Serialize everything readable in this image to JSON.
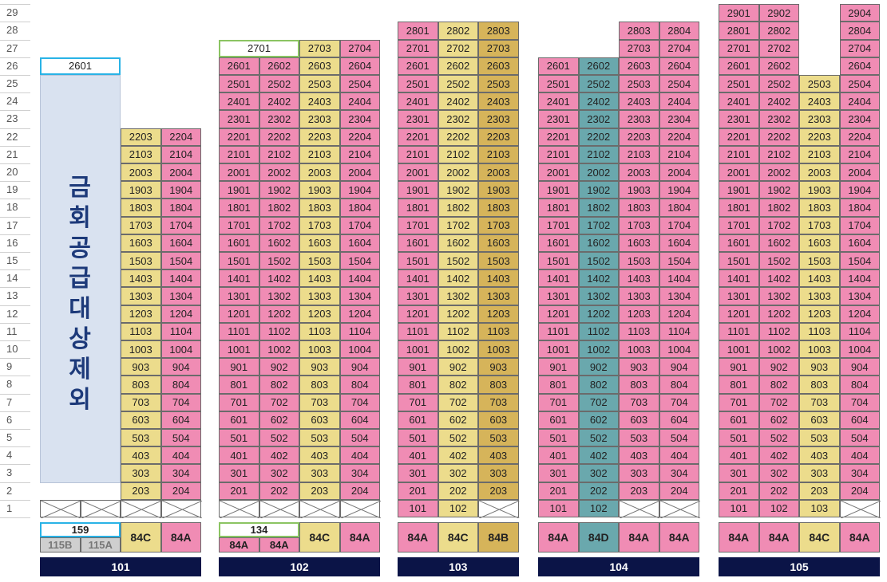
{
  "floors_labels": [
    "1",
    "2",
    "3",
    "4",
    "5",
    "6",
    "7",
    "8",
    "9",
    "10",
    "11",
    "12",
    "13",
    "14",
    "15",
    "16",
    "17",
    "18",
    "19",
    "20",
    "21",
    "22",
    "23",
    "24",
    "25",
    "26",
    "27",
    "28",
    "29"
  ],
  "colors": {
    "pink": "#f08cb4",
    "yellow": "#ecdc8c",
    "gold": "#d6b45a",
    "teal": "#6aa8ad",
    "white": "#ffffff",
    "lightblue": "#d9e2f0",
    "gray": "#cfcfcf",
    "navy": "#0b1447",
    "cyan_border": "#29b3e6",
    "green_border": "#8bc462"
  },
  "buildings": [
    {
      "id": "101",
      "label": "101",
      "excluded_text": "금회공급대상제외",
      "excluded_top_unit": "2601",
      "line_types": [
        {
          "text": "159",
          "sub": [
            "115B",
            "115A"
          ]
        },
        {
          "text": "84C"
        },
        {
          "text": "84A"
        }
      ],
      "lines": [
        {
          "suffix": "03",
          "type": "yellow",
          "top": 22
        },
        {
          "suffix": "04",
          "type": "pink",
          "top": 22
        }
      ]
    },
    {
      "id": "102",
      "label": "102",
      "line_types": [
        {
          "text": "134",
          "sub": [
            "84A",
            "84A"
          ]
        },
        {
          "text": "84C"
        },
        {
          "text": "84A"
        }
      ],
      "lines": [
        {
          "suffix": "01",
          "type": "pink",
          "top": 26,
          "special_top": "2701"
        },
        {
          "suffix": "02",
          "type": "pink",
          "top": 26
        },
        {
          "suffix": "03",
          "type": "yellow",
          "top": 27
        },
        {
          "suffix": "04",
          "type": "pink",
          "top": 27
        }
      ]
    },
    {
      "id": "103",
      "label": "103",
      "line_types": [
        {
          "text": "84A"
        },
        {
          "text": "84C"
        },
        {
          "text": "84B"
        }
      ],
      "lines": [
        {
          "suffix": "01",
          "type": "pink",
          "top": 28
        },
        {
          "suffix": "02",
          "type": "yellow",
          "top": 28
        },
        {
          "suffix": "03",
          "type": "gold",
          "top": 28
        }
      ]
    },
    {
      "id": "104",
      "label": "104",
      "line_types": [
        {
          "text": "84A"
        },
        {
          "text": "84D"
        },
        {
          "text": "84A"
        },
        {
          "text": "84A"
        }
      ],
      "lines": [
        {
          "suffix": "01",
          "type": "pink",
          "top": 26
        },
        {
          "suffix": "02",
          "type": "teal",
          "top": 26
        },
        {
          "suffix": "03",
          "type": "pink",
          "top": 28
        },
        {
          "suffix": "04",
          "type": "pink",
          "top": 28
        }
      ]
    },
    {
      "id": "105",
      "label": "105",
      "line_types": [
        {
          "text": "84A"
        },
        {
          "text": "84A"
        },
        {
          "text": "84C"
        },
        {
          "text": "84A"
        }
      ],
      "lines": [
        {
          "suffix": "01",
          "type": "pink",
          "top": 29
        },
        {
          "suffix": "02",
          "type": "pink",
          "top": 29
        },
        {
          "suffix": "03",
          "type": "yellow",
          "top": 25
        },
        {
          "suffix": "04",
          "type": "pink",
          "top": 29
        }
      ]
    }
  ],
  "first_floor_units": {
    "103": [
      "101",
      "102"
    ],
    "104": [
      "101",
      "102"
    ],
    "105": [
      "101",
      "102",
      "103"
    ]
  },
  "type_colors": {
    "101": [
      "white",
      "yellow",
      "pink"
    ],
    "102": [
      "white",
      "yellow",
      "pink"
    ],
    "103": [
      "pink",
      "yellow",
      "gold"
    ],
    "104": [
      "pink",
      "teal",
      "pink",
      "pink"
    ],
    "105": [
      "pink",
      "pink",
      "yellow",
      "pink"
    ]
  }
}
